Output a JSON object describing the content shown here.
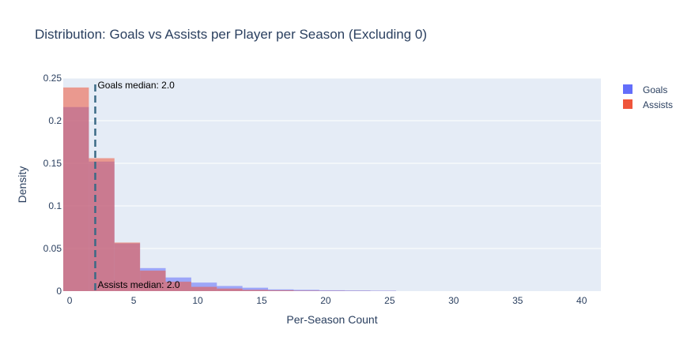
{
  "chart_data": {
    "type": "bar",
    "title": "Distribution: Goals vs Assists per Player per Season (Excluding 0)",
    "xlabel": "Per-Season Count",
    "ylabel": "Density",
    "xlim": [
      -0.5,
      41.5
    ],
    "ylim": [
      0,
      0.25
    ],
    "x_ticks": [
      0,
      5,
      10,
      15,
      20,
      25,
      30,
      35,
      40
    ],
    "x_tick_labels": [
      "0",
      "5",
      "10",
      "15",
      "20",
      "25",
      "30",
      "35",
      "40"
    ],
    "y_ticks": [
      0,
      0.05,
      0.1,
      0.15,
      0.2,
      0.25
    ],
    "y_tick_labels": [
      "0",
      "0.05",
      "0.1",
      "0.15",
      "0.2",
      "0.25"
    ],
    "bin_edges": [
      -0.5,
      1.5,
      3.5,
      5.5,
      7.5,
      9.5,
      11.5,
      13.5,
      15.5,
      17.5,
      19.5,
      21.5,
      23.5,
      25.5
    ],
    "series": [
      {
        "name": "Goals",
        "color": "#636efa",
        "values": [
          0.216,
          0.152,
          0.056,
          0.027,
          0.016,
          0.01,
          0.006,
          0.004,
          0.002,
          0.0015,
          0.001,
          0.0008,
          0.0005
        ]
      },
      {
        "name": "Assists",
        "color": "#ef553b",
        "values": [
          0.239,
          0.156,
          0.057,
          0.024,
          0.011,
          0.005,
          0.003,
          0.0015,
          0.001,
          0.0005,
          0.0003,
          0.0002,
          0.0001
        ]
      }
    ],
    "bar_opacity": 0.55,
    "medians": [
      {
        "label": "Goals median: 2.0",
        "value": 2.0,
        "position": "top"
      },
      {
        "label": "Assists median: 2.0",
        "value": 2.0,
        "position": "bottom"
      }
    ],
    "median_line_color": "#3b6a86",
    "plot_background": "#e5ecf6",
    "grid": true,
    "legend_position": "top-right"
  }
}
